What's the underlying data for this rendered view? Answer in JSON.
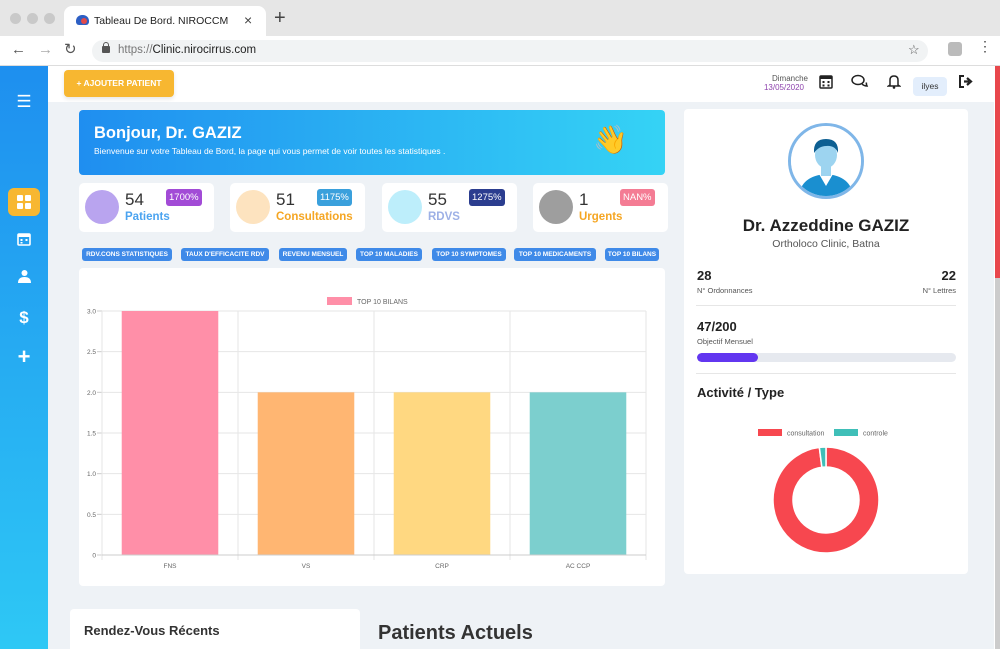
{
  "browser": {
    "tab_title": "Tableau De Bord. NIROCCM",
    "url_scheme": "https://",
    "url_host": "Clinic.nirocirrus.com"
  },
  "topbar": {
    "add_patient_label": "+ AJOUTER PATIENT",
    "day": "Dimanche",
    "date": "13/05/2020",
    "user": "ilyes"
  },
  "sidebar": {
    "items": [
      {
        "icon": "menu-icon"
      },
      {
        "icon": "dashboard-icon",
        "active": true
      },
      {
        "icon": "calendar-icon"
      },
      {
        "icon": "patient-icon"
      },
      {
        "icon": "dollar-icon"
      },
      {
        "icon": "plus-icon"
      }
    ]
  },
  "welcome": {
    "title": "Bonjour, Dr. GAZIZ",
    "subtitle": "Bienvenue sur votre Tableau de Bord, la page qui vous permet de voir toutes les statistiques ."
  },
  "stats": [
    {
      "value": "54",
      "label": "Patients",
      "badge": "1700%",
      "color": "#4aa3f0",
      "badge_color": "#a24bd6",
      "icon_bg": "#b9a4ef"
    },
    {
      "value": "51",
      "label": "Consultations",
      "badge": "1175%",
      "color": "#f5a623",
      "badge_color": "#3aa0dc",
      "icon_bg": "#fde3bf"
    },
    {
      "value": "55",
      "label": "RDVS",
      "badge": "1275%",
      "color": "#9db0e6",
      "badge_color": "#2b3d8f",
      "icon_bg": "#bdeefb"
    },
    {
      "value": "1",
      "label": "Urgents",
      "badge": "NAN%",
      "color": "#f5a623",
      "badge_color": "#f47c94",
      "icon_bg": "#9e9e9e"
    }
  ],
  "chips": [
    "RDV.CONS STATISTIQUES",
    "TAUX D'EFFICACITE RDV",
    "REVENU MENSUEL",
    "TOP 10 MALADIES",
    "TOP 10 SYMPTOMES",
    "TOP 10 MEDICAMENTS",
    "TOP 10 BILANS"
  ],
  "chart_data": {
    "type": "bar",
    "legend": "TOP 10 BILANS",
    "legend_placement": "top",
    "categories": [
      "FNS",
      "VS",
      "CRP",
      "AC CCP"
    ],
    "values": [
      3,
      2,
      2,
      2
    ],
    "colors": [
      "#ff8fa8",
      "#ffb672",
      "#ffd881",
      "#7ccfce"
    ],
    "ylim": [
      0,
      3
    ],
    "yticks": [
      "0",
      "0.5",
      "1.0",
      "1.5",
      "2.0",
      "2.5",
      "3.0"
    ],
    "grid": true
  },
  "profile": {
    "name": "Dr. Azzeddine GAZIZ",
    "clinic": "Ortholoco Clinic, Batna",
    "ordonnances_value": "28",
    "ordonnances_label": "N° Ordonnances",
    "lettres_value": "22",
    "lettres_label": "N° Lettres",
    "objectif_value": "47/200",
    "objectif_label": "Objectif Mensuel",
    "objectif_fraction": 0.235,
    "activity_title": "Activité / Type"
  },
  "donut_data": {
    "type": "pie",
    "categories": [
      "consultation",
      "controle"
    ],
    "values": [
      98,
      2
    ],
    "colors": [
      "#f7474f",
      "#3fbfb8"
    ],
    "legend_placement": "top"
  },
  "bottom": {
    "recent_title": "Rendez-Vous Récents",
    "patients_title": "Patients Actuels"
  }
}
